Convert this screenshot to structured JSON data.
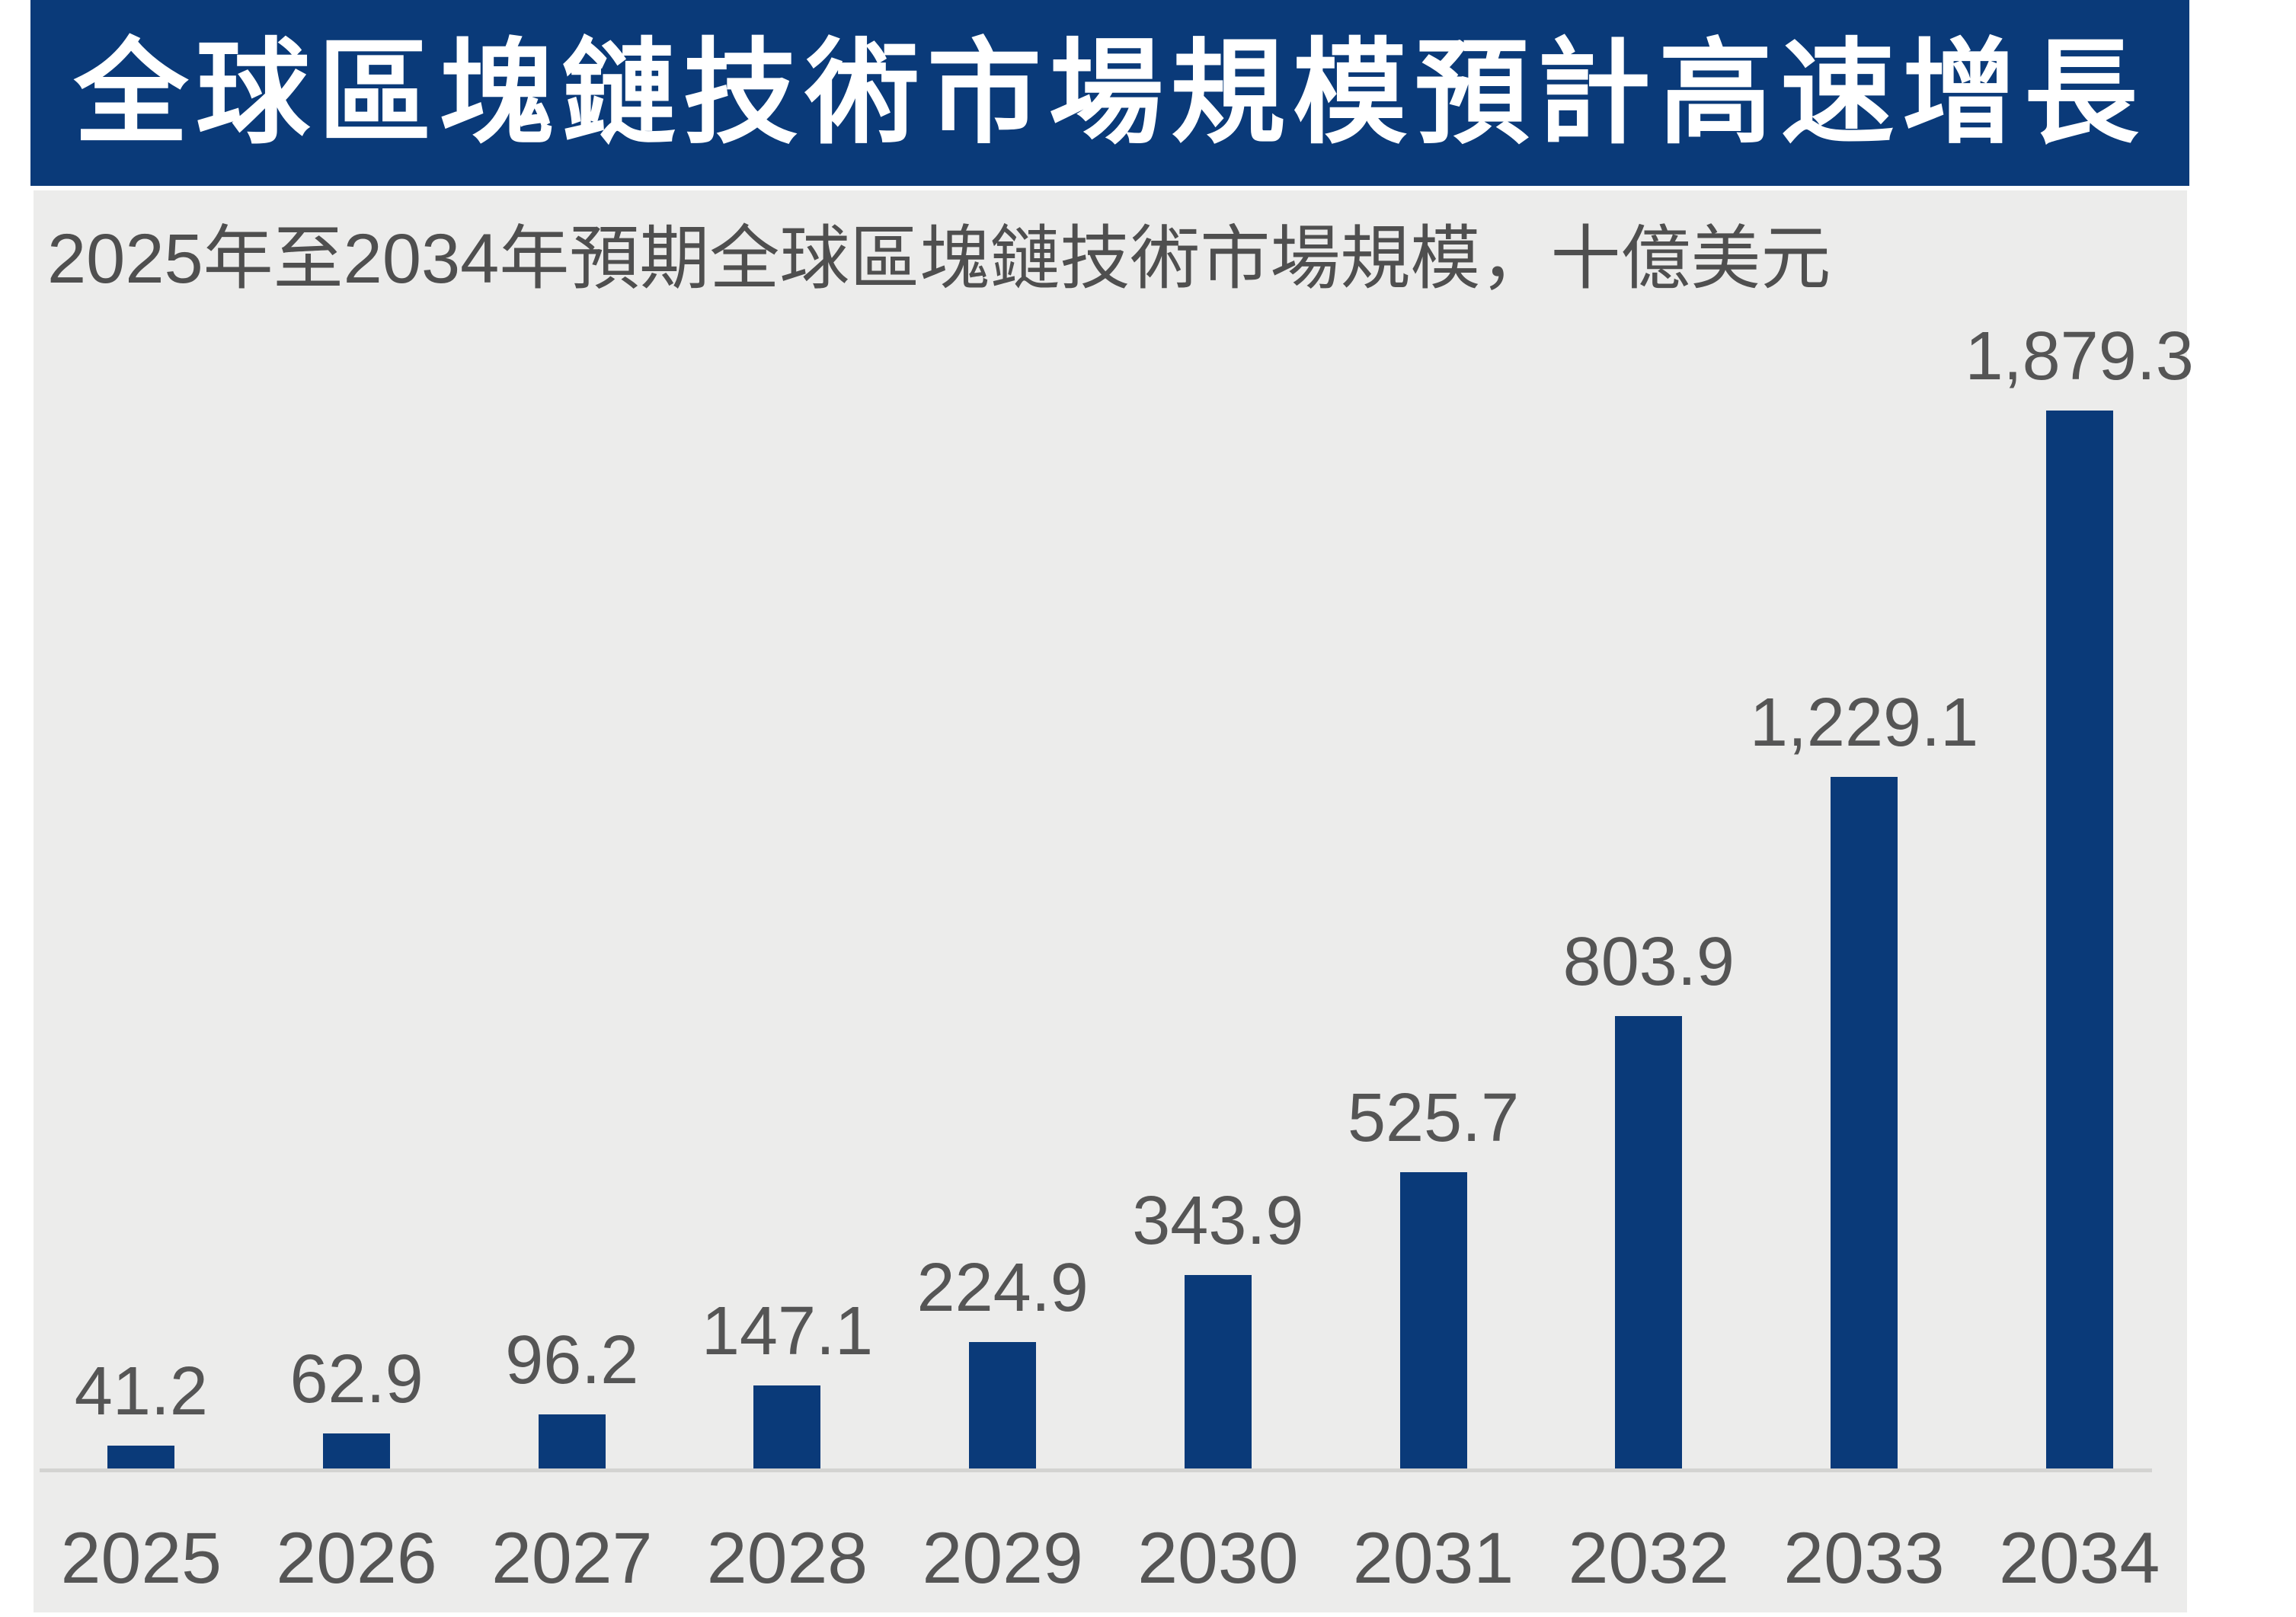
{
  "banner": {
    "title": "全球區塊鏈技術市場規模預計高速增長",
    "bg_color": "#0A3A79",
    "text_color": "#FFFFFF"
  },
  "subtitle": "2025年至2034年預期全球區塊鏈技術市場規模，十億美元",
  "chart_data": {
    "type": "bar",
    "title": "全球區塊鏈技術市場規模預計高速增長",
    "subtitle": "2025年至2034年預期全球區塊鏈技術市場規模，十億美元",
    "unit": "十億美元",
    "categories": [
      "2025",
      "2026",
      "2027",
      "2028",
      "2029",
      "2030",
      "2031",
      "2032",
      "2033",
      "2034"
    ],
    "values": [
      41.2,
      62.9,
      96.2,
      147.1,
      224.9,
      343.9,
      525.7,
      803.9,
      1229.1,
      1879.3
    ],
    "value_labels": [
      "41.2",
      "62.9",
      "96.2",
      "147.1",
      "224.9",
      "343.9",
      "525.7",
      "803.9",
      "1,229.1",
      "1,879.3"
    ],
    "xlabel": "",
    "ylabel": "",
    "ylim": [
      0,
      1900
    ],
    "grid": false,
    "legend": false,
    "data_labels_shown": true,
    "bar_color": "#0A3A79",
    "label_color": "#555555",
    "axis_line_color": "#D3D3D1"
  },
  "colors": {
    "panel_bg": "#ECECEB",
    "page_bg": "#FFFFFF",
    "subtitle_text": "#4F4F4F"
  }
}
